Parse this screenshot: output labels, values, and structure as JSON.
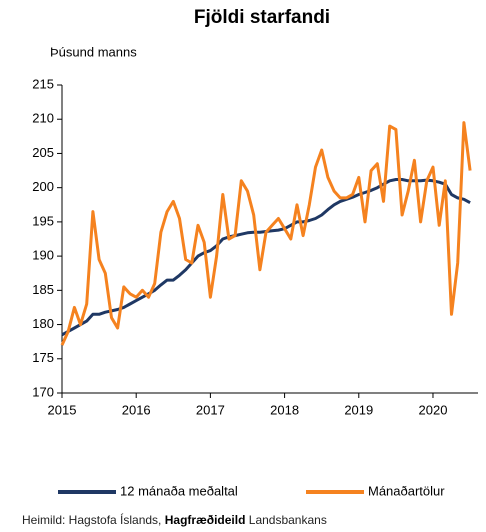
{
  "chart_data": {
    "type": "line",
    "title": "Fjöldi starfandi",
    "y_label": "Þúsund manns",
    "categories": [
      "2015",
      null,
      null,
      null,
      null,
      null,
      null,
      null,
      null,
      null,
      null,
      null,
      "2016",
      null,
      null,
      null,
      null,
      null,
      null,
      null,
      null,
      null,
      null,
      null,
      "2017",
      null,
      null,
      null,
      null,
      null,
      null,
      null,
      null,
      null,
      null,
      null,
      "2018",
      null,
      null,
      null,
      null,
      null,
      null,
      null,
      null,
      null,
      null,
      null,
      "2019",
      null,
      null,
      null,
      null,
      null,
      null,
      null,
      null,
      null,
      null,
      null,
      "2020",
      null,
      null,
      null,
      null,
      null,
      null
    ],
    "series": [
      {
        "name": "12 mánaða meðaltal",
        "color": "#1f3864",
        "values": [
          178.5,
          179,
          179.5,
          180,
          180.5,
          181.5,
          181.5,
          181.8,
          182,
          182.2,
          182.5,
          183,
          183.5,
          184,
          184.5,
          185,
          185.8,
          186.5,
          186.5,
          187.2,
          188,
          189,
          190,
          190.5,
          190.8,
          191.5,
          192.5,
          192.8,
          193,
          193.2,
          193.4,
          193.5,
          193.5,
          193.6,
          193.7,
          193.8,
          194,
          194.5,
          195,
          195,
          195.2,
          195.5,
          196,
          196.8,
          197.5,
          198,
          198.3,
          198.6,
          199,
          199.3,
          199.6,
          200,
          200.5,
          201,
          201.2,
          201.2,
          201,
          201,
          201,
          201.1,
          201,
          200.8,
          200.5,
          199,
          198.5,
          198.3,
          197.8
        ]
      },
      {
        "name": "Mánaðartölur",
        "color": "#f5821f",
        "values": [
          177,
          179,
          182.5,
          180,
          183,
          196.5,
          189.5,
          187.5,
          181,
          179.5,
          185.5,
          184.5,
          184,
          185,
          184,
          186,
          193.5,
          196.5,
          198,
          195.5,
          189.5,
          189,
          194.5,
          192,
          184,
          190,
          199,
          192.5,
          193,
          201,
          199.5,
          196,
          188,
          193.5,
          194.5,
          195.5,
          194,
          192.5,
          197.5,
          193,
          197.5,
          203,
          205.5,
          201.5,
          199.5,
          198.5,
          198.5,
          199,
          201.5,
          195,
          202.5,
          203.5,
          198,
          209,
          208.5,
          196,
          199.5,
          204,
          195,
          201,
          203,
          194.5,
          201,
          181.5,
          189,
          209.5,
          202.5
        ]
      }
    ],
    "ylim": [
      170,
      215
    ],
    "yticks": [
      170,
      175,
      180,
      185,
      190,
      195,
      200,
      205,
      210,
      215
    ],
    "grid": false,
    "source": [
      "Heimild: Hagstofa Íslands,",
      "Hagfræðideild",
      "Landsbankans"
    ]
  }
}
